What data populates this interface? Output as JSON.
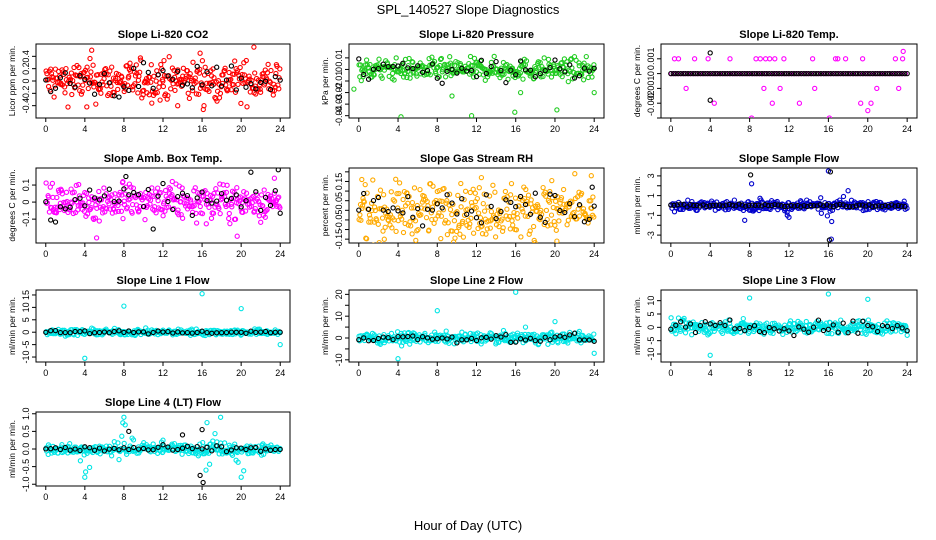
{
  "figure": {
    "title": "SPL_140527  Slope Diagnostics",
    "xlabel": "Hour of Day (UTC)"
  },
  "chart_data": [
    {
      "id": "co2",
      "type": "scatter",
      "title": "Slope Li-820 CO2",
      "ylabel": "Licor ppm per min.",
      "xlim": [
        -1,
        25
      ],
      "ylim": [
        -0.6,
        0.6
      ],
      "yticks": [
        -0.4,
        -0.2,
        0,
        0.2,
        0.4
      ],
      "xticks": [
        0,
        4,
        8,
        12,
        16,
        20,
        24
      ],
      "series": [
        {
          "color": "#ff0000",
          "spread": 0.16,
          "outliers": [
            [
              4.7,
              0.5
            ],
            [
              4.2,
              -0.42
            ],
            [
              13.5,
              -0.4
            ],
            [
              12.1,
              0.33
            ],
            [
              16.2,
              -0.4
            ],
            [
              21.3,
              0.55
            ],
            [
              15.8,
              0.45
            ]
          ]
        },
        {
          "color": "#000000",
          "spread": 0.14,
          "step": 0.5
        }
      ]
    },
    {
      "id": "pressure",
      "type": "scatter",
      "title": "Slope Li-820 Pressure",
      "ylabel": "kPa per min.",
      "xlim": [
        -1,
        25
      ],
      "ylim": [
        -0.042,
        0.022
      ],
      "yticks": [
        -0.04,
        -0.03,
        -0.02,
        -0.01,
        0,
        0.01
      ],
      "xticks": [
        0,
        4,
        8,
        12,
        16,
        20,
        24
      ],
      "series": [
        {
          "color": "#22cc22",
          "spread": 0.0045,
          "outliers": [
            [
              -0.5,
              -0.017
            ],
            [
              4.3,
              -0.041
            ],
            [
              9.5,
              -0.023
            ],
            [
              11.5,
              -0.04
            ],
            [
              15.9,
              -0.037
            ],
            [
              20.2,
              -0.035
            ],
            [
              16.5,
              -0.02
            ],
            [
              24,
              -0.02
            ]
          ]
        },
        {
          "color": "#000000",
          "spread": 0.006,
          "step": 0.5
        }
      ]
    },
    {
      "id": "temp",
      "type": "scatter",
      "title": "Slope Li-820 Temp.",
      "ylabel": "degrees C per min.",
      "xlim": [
        -1,
        25
      ],
      "ylim": [
        -0.003,
        0.002
      ],
      "yticks": [
        -0.003,
        -0.002,
        -0.001,
        0,
        0.001
      ],
      "yticklabels": [
        "",
        "-0.002",
        "-0.001",
        "0",
        "0.001"
      ],
      "xticks": [
        0,
        4,
        8,
        12,
        16,
        20,
        24
      ],
      "series": [
        {
          "color": "#ff00ff",
          "discrete": [
            0.001,
            -0.001,
            -0.002
          ],
          "outliers": [
            [
              8.2,
              -0.003
            ],
            [
              16.1,
              -0.003
            ],
            [
              23.6,
              0.0015
            ],
            [
              20,
              -0.0025
            ]
          ]
        },
        {
          "color": "#000000",
          "discrete": [
            0.0
          ],
          "outliers": [
            [
              4.0,
              0.0014
            ],
            [
              4.0,
              -0.0018
            ]
          ]
        }
      ]
    },
    {
      "id": "boxtemp",
      "type": "scatter",
      "title": "Slope Amb. Box Temp.",
      "ylabel": "degrees C per min.",
      "xlim": [
        -1,
        25
      ],
      "ylim": [
        -0.24,
        0.2
      ],
      "yticks": [
        -0.1,
        0,
        0.1
      ],
      "xticks": [
        0,
        4,
        8,
        12,
        16,
        20,
        24
      ],
      "series": [
        {
          "color": "#ff00ff",
          "spread": 0.05,
          "outliers": [
            [
              5.2,
              -0.21
            ],
            [
              19.6,
              -0.2
            ],
            [
              23.4,
              0.14
            ],
            [
              7.9,
              0.12
            ]
          ]
        },
        {
          "color": "#000000",
          "spread": 0.06,
          "step": 0.5,
          "outliers": [
            [
              23.8,
              0.19
            ],
            [
              8.2,
              0.15
            ]
          ]
        }
      ]
    },
    {
      "id": "rh",
      "type": "scatter",
      "title": "Slope Gas Stream RH",
      "ylabel": "percent per min.",
      "xlim": [
        -1,
        25
      ],
      "ylim": [
        -0.17,
        0.22
      ],
      "yticks": [
        -0.15,
        -0.05,
        0.05,
        0.15
      ],
      "yticklabels": [
        "-0.15",
        "-0.05",
        "0.05",
        "0.15"
      ],
      "yminorticks": [
        -0.1,
        0,
        0.1,
        0.2
      ],
      "xticks": [
        0,
        4,
        8,
        12,
        16,
        20,
        24
      ],
      "series": [
        {
          "color": "#ffaa00",
          "spread": 0.07,
          "outliers": [
            [
              23.7,
              0.18
            ],
            [
              0.3,
              0.16
            ],
            [
              12.5,
              0.17
            ],
            [
              20.2,
              -0.16
            ],
            [
              2.6,
              -0.15
            ]
          ]
        },
        {
          "color": "#000000",
          "spread": 0.045,
          "step": 0.5,
          "outliers": [
            [
              23.8,
              0.12
            ]
          ]
        }
      ]
    },
    {
      "id": "sampleflow",
      "type": "scatter",
      "title": "Slope Sample Flow",
      "ylabel": "ml/min per min.",
      "xlim": [
        -1,
        25
      ],
      "ylim": [
        -3.8,
        3.8
      ],
      "yticks": [
        -3,
        -2,
        -1,
        0,
        1,
        2,
        3
      ],
      "yticklabels": [
        "-3",
        "",
        "-1",
        "",
        "1",
        "",
        "3"
      ],
      "xticks": [
        0,
        4,
        8,
        12,
        16,
        20,
        24
      ],
      "series": [
        {
          "color": "#0000cc",
          "spread": 0.25,
          "peaks": [
            [
              8.2,
              2.2
            ],
            [
              16,
              3.5
            ],
            [
              7.5,
              -1.5
            ],
            [
              16.3,
              -3.4
            ],
            [
              18,
              1.5
            ],
            [
              12,
              -1.2
            ]
          ]
        },
        {
          "color": "#000000",
          "spread": 0.08,
          "step": 0.33,
          "outliers": [
            [
              8.1,
              3.1
            ],
            [
              16.2,
              3.4
            ],
            [
              16.1,
              -3.5
            ]
          ]
        }
      ]
    },
    {
      "id": "line1",
      "type": "scatter",
      "title": "Slope Line 1 Flow",
      "ylabel": "ml/min per min.",
      "xlim": [
        -1,
        25
      ],
      "ylim": [
        -12,
        17
      ],
      "yticks": [
        -10,
        -5,
        0,
        5,
        10,
        15
      ],
      "xticks": [
        0,
        4,
        8,
        12,
        16,
        20,
        24
      ],
      "series": [
        {
          "color": "#00e5e5",
          "spread": 0.6,
          "outliers": [
            [
              8,
              10.5
            ],
            [
              16,
              15.5
            ],
            [
              20,
              9.5
            ],
            [
              4,
              -10.5
            ],
            [
              24,
              -5
            ]
          ]
        },
        {
          "color": "#000000",
          "spread": 0.3,
          "step": 0.5
        }
      ]
    },
    {
      "id": "line2",
      "type": "scatter",
      "title": "Slope Line 2 Flow",
      "ylabel": "ml/min per min.",
      "xlim": [
        -1,
        25
      ],
      "ylim": [
        -11,
        22
      ],
      "yticks": [
        -10,
        -5,
        0,
        5,
        10,
        15,
        20
      ],
      "yticklabels": [
        "-10",
        "",
        "0",
        "",
        "10",
        "",
        "20"
      ],
      "xticks": [
        0,
        4,
        8,
        12,
        16,
        20,
        24
      ],
      "series": [
        {
          "color": "#00e5e5",
          "spread": 1.2,
          "outliers": [
            [
              8,
              12.5
            ],
            [
              16,
              21
            ],
            [
              20,
              7.5
            ],
            [
              4,
              -9.5
            ],
            [
              24,
              -7
            ],
            [
              17,
              5
            ]
          ]
        },
        {
          "color": "#000000",
          "spread": 1.0,
          "step": 0.5
        }
      ]
    },
    {
      "id": "line3",
      "type": "scatter",
      "title": "Slope Line 3 Flow",
      "ylabel": "ml/min per min.",
      "xlim": [
        -1,
        25
      ],
      "ylim": [
        -13,
        14
      ],
      "yticks": [
        -10,
        -5,
        0,
        5,
        10
      ],
      "xticks": [
        0,
        4,
        8,
        12,
        16,
        20,
        24
      ],
      "series": [
        {
          "color": "#00e5e5",
          "spread": 1.3,
          "outliers": [
            [
              8,
              11
            ],
            [
              16,
              12.5
            ],
            [
              20,
              10.5
            ],
            [
              4,
              -10.5
            ],
            [
              24,
              -3
            ]
          ]
        },
        {
          "color": "#000000",
          "spread": 1.2,
          "step": 0.5
        }
      ]
    },
    {
      "id": "line4",
      "type": "scatter",
      "title": "Slope Line 4 (LT) Flow",
      "ylabel": "ml/min per min.",
      "xlim": [
        -1,
        25
      ],
      "ylim": [
        -1.05,
        1.05
      ],
      "yticks": [
        -1,
        -0.5,
        0,
        0.5,
        1
      ],
      "yticklabels": [
        "-1.0",
        "-0.5",
        "0.0",
        "0.5",
        "1.0"
      ],
      "xticks": [
        0,
        4,
        8,
        12,
        16,
        20,
        24
      ],
      "series": [
        {
          "color": "#00e5e5",
          "spread": 0.07,
          "peaks": [
            [
              8,
              0.9
            ],
            [
              16.5,
              0.75
            ],
            [
              17.9,
              0.9
            ],
            [
              4,
              -0.8
            ],
            [
              16.4,
              -0.6
            ],
            [
              7.5,
              -0.3
            ],
            [
              20,
              -0.8
            ],
            [
              12,
              0.25
            ]
          ]
        },
        {
          "color": "#000000",
          "spread": 0.05,
          "step": 0.5,
          "outliers": [
            [
              15.8,
              -0.75
            ],
            [
              16,
              0.55
            ],
            [
              16.1,
              -0.95
            ],
            [
              8.5,
              0.5
            ],
            [
              14,
              0.4
            ]
          ]
        }
      ]
    }
  ]
}
